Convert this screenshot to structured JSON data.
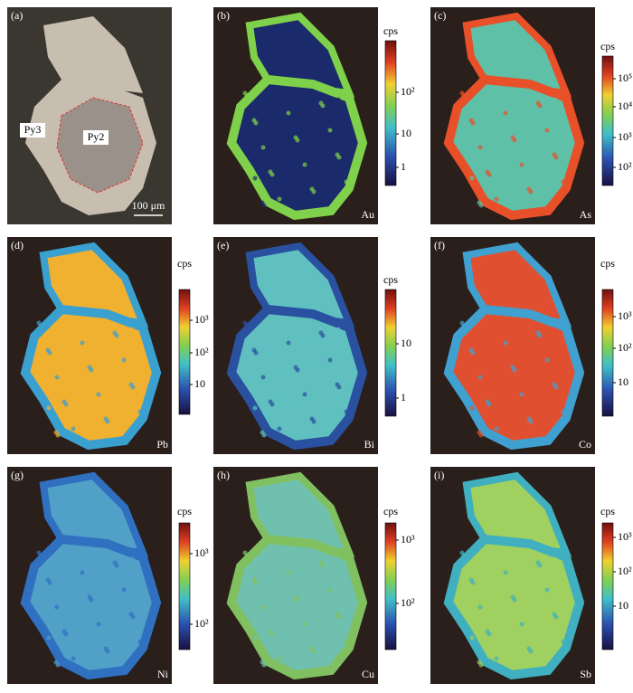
{
  "panels": [
    {
      "label": "(a)",
      "annotations": [
        "Py3",
        "Py2"
      ],
      "scale_bar": "100 μm"
    },
    {
      "label": "(b)",
      "element": "Au",
      "colorbar": {
        "title": "cps",
        "ticks": [
          "10²",
          "10",
          "1"
        ]
      }
    },
    {
      "label": "(c)",
      "element": "As",
      "colorbar": {
        "title": "cps",
        "ticks": [
          "10⁵",
          "10⁴",
          "10³",
          "10²"
        ]
      }
    },
    {
      "label": "(d)",
      "element": "Pb",
      "colorbar": {
        "title": "cps",
        "ticks": [
          "10³",
          "10²",
          "10"
        ]
      }
    },
    {
      "label": "(e)",
      "element": "Bi",
      "colorbar": {
        "title": "cps",
        "ticks": [
          "10",
          "1"
        ]
      }
    },
    {
      "label": "(f)",
      "element": "Co",
      "colorbar": {
        "title": "cps",
        "ticks": [
          "10³",
          "10²",
          "10"
        ]
      }
    },
    {
      "label": "(g)",
      "element": "Ni",
      "colorbar": {
        "title": "cps",
        "ticks": [
          "10³",
          "10²"
        ]
      }
    },
    {
      "label": "(h)",
      "element": "Cu",
      "colorbar": {
        "title": "cps",
        "ticks": [
          "10³",
          "10²"
        ]
      }
    },
    {
      "label": "(i)",
      "element": "Sb",
      "colorbar": {
        "title": "cps",
        "ticks": [
          "10³",
          "10²",
          "10"
        ]
      }
    }
  ]
}
